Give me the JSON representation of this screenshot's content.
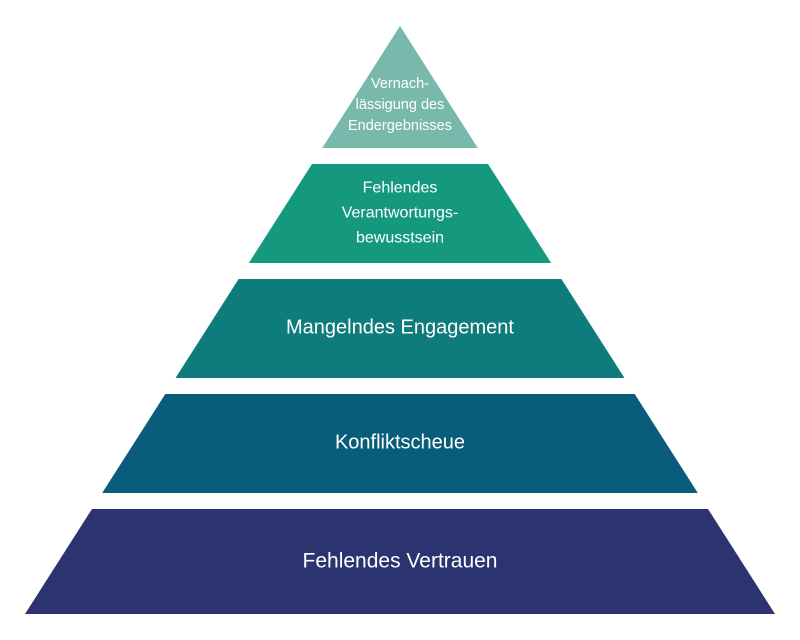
{
  "pyramid": {
    "levels": [
      {
        "lines": [
          "Vernach-",
          "lässigung des",
          "Endergebnisses"
        ],
        "color": "#78b9ac"
      },
      {
        "lines": [
          "Fehlendes",
          "Verantwortungs-",
          "bewusstsein"
        ],
        "color": "#14997f"
      },
      {
        "lines": [
          "Mangelndes Engagement"
        ],
        "color": "#0e7c7d"
      },
      {
        "lines": [
          "Konfliktscheue"
        ],
        "color": "#0a5d7a"
      },
      {
        "lines": [
          "Fehlendes Vertrauen"
        ],
        "color": "#2b3470"
      }
    ]
  }
}
